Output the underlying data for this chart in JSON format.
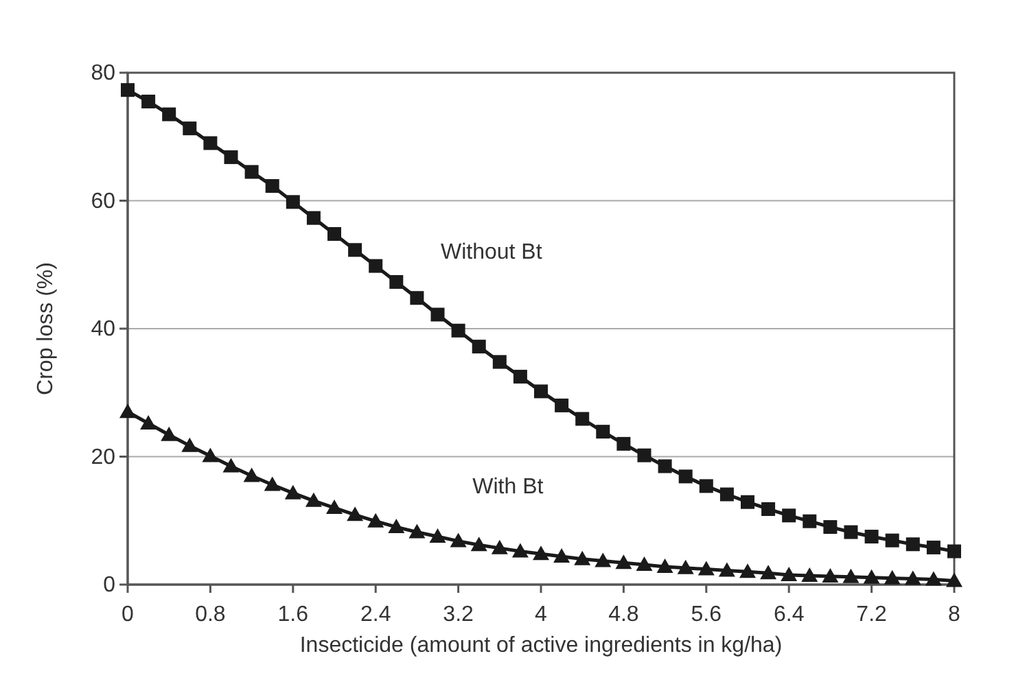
{
  "chart_data": {
    "type": "line",
    "xlabel": "Insecticide (amount of active ingredients in kg/ha)",
    "ylabel": "Crop loss (%)",
    "x": [
      0,
      0.2,
      0.4,
      0.6,
      0.8,
      1.0,
      1.2,
      1.4,
      1.6,
      1.8,
      2.0,
      2.2,
      2.4,
      2.6,
      2.8,
      3.0,
      3.2,
      3.4,
      3.6,
      3.8,
      4.0,
      4.2,
      4.4,
      4.6,
      4.8,
      5.0,
      5.2,
      5.4,
      5.6,
      5.8,
      6.0,
      6.2,
      6.4,
      6.6,
      6.8,
      7.0,
      7.2,
      7.4,
      7.6,
      7.8,
      8.0
    ],
    "series": [
      {
        "name": "Without Bt",
        "color": "#1a1a1a",
        "marker": "square",
        "values": [
          77.3,
          75.5,
          73.5,
          71.3,
          69.0,
          66.8,
          64.5,
          62.3,
          59.8,
          57.3,
          54.8,
          52.3,
          49.8,
          47.3,
          44.8,
          42.2,
          39.7,
          37.2,
          34.8,
          32.5,
          30.2,
          28.0,
          25.9,
          23.9,
          22.0,
          20.2,
          18.5,
          16.9,
          15.4,
          14.1,
          12.9,
          11.8,
          10.8,
          9.9,
          9.0,
          8.2,
          7.5,
          6.9,
          6.3,
          5.8,
          5.2
        ]
      },
      {
        "name": "With Bt",
        "color": "#1a1a1a",
        "marker": "triangle",
        "values": [
          27.0,
          25.2,
          23.4,
          21.7,
          20.1,
          18.5,
          17.0,
          15.6,
          14.3,
          13.1,
          12.0,
          10.9,
          9.9,
          9.0,
          8.2,
          7.5,
          6.8,
          6.2,
          5.7,
          5.2,
          4.8,
          4.4,
          4.0,
          3.7,
          3.4,
          3.1,
          2.8,
          2.6,
          2.4,
          2.2,
          2.0,
          1.8,
          1.5,
          1.4,
          1.3,
          1.2,
          1.1,
          1.0,
          0.9,
          0.8,
          0.6
        ]
      }
    ],
    "xlim": [
      0,
      8
    ],
    "xticks": [
      0,
      0.8,
      1.6,
      2.4,
      3.2,
      4,
      4.8,
      5.6,
      6.4,
      7.2,
      8
    ],
    "ylim": [
      0,
      80
    ],
    "yticks": [
      0,
      20,
      40,
      60,
      80
    ],
    "grid": "y",
    "line_style": "solid"
  }
}
